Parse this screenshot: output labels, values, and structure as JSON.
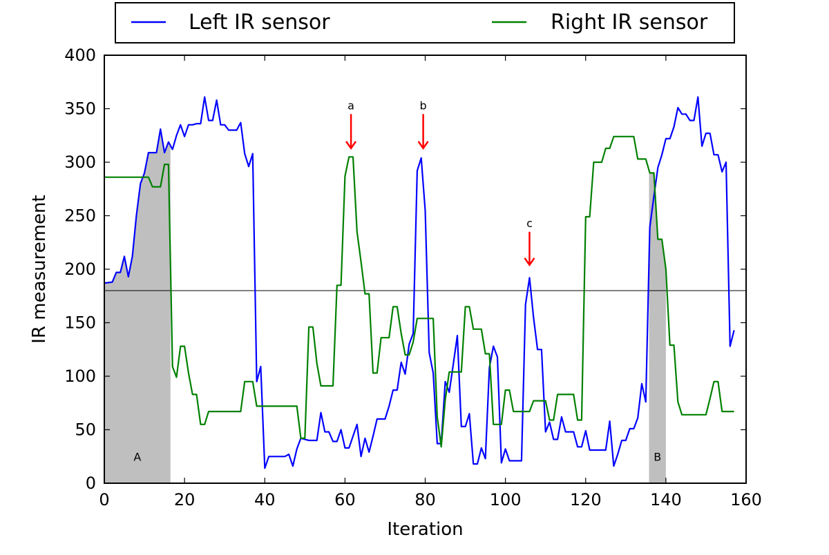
{
  "chart_data": {
    "type": "line",
    "xlabel": "Iteration",
    "ylabel": "IR measurement",
    "xlim": [
      0,
      160
    ],
    "ylim": [
      0,
      400
    ],
    "xticks": [
      0,
      20,
      40,
      60,
      80,
      100,
      120,
      140,
      160
    ],
    "yticks": [
      0,
      50,
      100,
      150,
      200,
      250,
      300,
      350,
      400
    ],
    "grid": false,
    "legend_position": "top, outside plot, two columns",
    "threshold_line": 180,
    "series": [
      {
        "name": "Left IR sensor",
        "color": "#0000ff",
        "points": [
          [
            0,
            187
          ],
          [
            2,
            188
          ],
          [
            3,
            197
          ],
          [
            4,
            197
          ],
          [
            5,
            212
          ],
          [
            6,
            193
          ],
          [
            7,
            212
          ],
          [
            8,
            250
          ],
          [
            9,
            280
          ],
          [
            10,
            290
          ],
          [
            11,
            309
          ],
          [
            13,
            309
          ],
          [
            14,
            331
          ],
          [
            15,
            309
          ],
          [
            16,
            319
          ],
          [
            17,
            312
          ],
          [
            18,
            325
          ],
          [
            19,
            335
          ],
          [
            20,
            324
          ],
          [
            21,
            335
          ],
          [
            22,
            335
          ],
          [
            23,
            336
          ],
          [
            24,
            336
          ],
          [
            25,
            361
          ],
          [
            26,
            339
          ],
          [
            27,
            339
          ],
          [
            28,
            358
          ],
          [
            29,
            335
          ],
          [
            30,
            335
          ],
          [
            31,
            330
          ],
          [
            33,
            330
          ],
          [
            34,
            337
          ],
          [
            35,
            308
          ],
          [
            36,
            296
          ],
          [
            37,
            308
          ],
          [
            38,
            95
          ],
          [
            39,
            109
          ],
          [
            40,
            14
          ],
          [
            41,
            25
          ],
          [
            45,
            25
          ],
          [
            46,
            27
          ],
          [
            47,
            16
          ],
          [
            48,
            32
          ],
          [
            49,
            42
          ],
          [
            50,
            41
          ],
          [
            51,
            40
          ],
          [
            53,
            40
          ],
          [
            54,
            66
          ],
          [
            55,
            48
          ],
          [
            56,
            48
          ],
          [
            57,
            39
          ],
          [
            58,
            39
          ],
          [
            59,
            50
          ],
          [
            60,
            33
          ],
          [
            61,
            33
          ],
          [
            62,
            44
          ],
          [
            63,
            55
          ],
          [
            64,
            25
          ],
          [
            65,
            42
          ],
          [
            66,
            29
          ],
          [
            67,
            44
          ],
          [
            68,
            60
          ],
          [
            70,
            60
          ],
          [
            71,
            72
          ],
          [
            72,
            87
          ],
          [
            73,
            87
          ],
          [
            74,
            113
          ],
          [
            75,
            102
          ],
          [
            76,
            130
          ],
          [
            77,
            140
          ],
          [
            78,
            292
          ],
          [
            79,
            304
          ],
          [
            80,
            255
          ],
          [
            81,
            122
          ],
          [
            82,
            103
          ],
          [
            83,
            37
          ],
          [
            84,
            37
          ],
          [
            85,
            95
          ],
          [
            86,
            85
          ],
          [
            87,
            111
          ],
          [
            88,
            138
          ],
          [
            89,
            53
          ],
          [
            90,
            53
          ],
          [
            91,
            65
          ],
          [
            92,
            18
          ],
          [
            93,
            18
          ],
          [
            94,
            33
          ],
          [
            95,
            23
          ],
          [
            96,
            108
          ],
          [
            97,
            128
          ],
          [
            98,
            118
          ],
          [
            99,
            19
          ],
          [
            100,
            32
          ],
          [
            101,
            21
          ],
          [
            104,
            21
          ],
          [
            105,
            167
          ],
          [
            106,
            192
          ],
          [
            107,
            155
          ],
          [
            108,
            125
          ],
          [
            109,
            125
          ],
          [
            110,
            48
          ],
          [
            111,
            57
          ],
          [
            112,
            41
          ],
          [
            113,
            41
          ],
          [
            114,
            62
          ],
          [
            115,
            48
          ],
          [
            117,
            48
          ],
          [
            118,
            34
          ],
          [
            119,
            34
          ],
          [
            120,
            49
          ],
          [
            121,
            31
          ],
          [
            125,
            31
          ],
          [
            126,
            58
          ],
          [
            127,
            16
          ],
          [
            128,
            27
          ],
          [
            129,
            40
          ],
          [
            130,
            40
          ],
          [
            131,
            51
          ],
          [
            132,
            51
          ],
          [
            133,
            61
          ],
          [
            134,
            93
          ],
          [
            135,
            76
          ],
          [
            136,
            239
          ],
          [
            137,
            268
          ],
          [
            138,
            295
          ],
          [
            139,
            307
          ],
          [
            140,
            322
          ],
          [
            141,
            322
          ],
          [
            142,
            333
          ],
          [
            143,
            351
          ],
          [
            144,
            345
          ],
          [
            145,
            345
          ],
          [
            146,
            339
          ],
          [
            147,
            339
          ],
          [
            148,
            361
          ],
          [
            149,
            315
          ],
          [
            150,
            327
          ],
          [
            151,
            327
          ],
          [
            152,
            307
          ],
          [
            153,
            307
          ],
          [
            154,
            291
          ],
          [
            155,
            300
          ],
          [
            156,
            128
          ],
          [
            157,
            143
          ]
        ]
      },
      {
        "name": "Right IR sensor",
        "color": "#008000",
        "points": [
          [
            0,
            286
          ],
          [
            11,
            286
          ],
          [
            12,
            277
          ],
          [
            14,
            277
          ],
          [
            15,
            298
          ],
          [
            16,
            298
          ],
          [
            17,
            109
          ],
          [
            18,
            99
          ],
          [
            19,
            128
          ],
          [
            20,
            128
          ],
          [
            21,
            103
          ],
          [
            22,
            83
          ],
          [
            23,
            83
          ],
          [
            24,
            55
          ],
          [
            25,
            55
          ],
          [
            26,
            67
          ],
          [
            34,
            67
          ],
          [
            35,
            95
          ],
          [
            37,
            95
          ],
          [
            38,
            72
          ],
          [
            48,
            72
          ],
          [
            49,
            42
          ],
          [
            50,
            42
          ],
          [
            51,
            146
          ],
          [
            52,
            146
          ],
          [
            53,
            112
          ],
          [
            54,
            91
          ],
          [
            57,
            91
          ],
          [
            58,
            185
          ],
          [
            59,
            185
          ],
          [
            60,
            287
          ],
          [
            61,
            305
          ],
          [
            62,
            305
          ],
          [
            63,
            235
          ],
          [
            64,
            207
          ],
          [
            65,
            177
          ],
          [
            66,
            177
          ],
          [
            67,
            103
          ],
          [
            68,
            103
          ],
          [
            69,
            136
          ],
          [
            71,
            136
          ],
          [
            72,
            165
          ],
          [
            73,
            165
          ],
          [
            74,
            140
          ],
          [
            75,
            120
          ],
          [
            76,
            120
          ],
          [
            77,
            132
          ],
          [
            78,
            154
          ],
          [
            82,
            154
          ],
          [
            83,
            62
          ],
          [
            84,
            34
          ],
          [
            85,
            78
          ],
          [
            86,
            104
          ],
          [
            89,
            104
          ],
          [
            90,
            165
          ],
          [
            91,
            165
          ],
          [
            92,
            144
          ],
          [
            94,
            144
          ],
          [
            95,
            121
          ],
          [
            96,
            121
          ],
          [
            97,
            55
          ],
          [
            99,
            55
          ],
          [
            100,
            87
          ],
          [
            101,
            87
          ],
          [
            102,
            67
          ],
          [
            105,
            67
          ],
          [
            106,
            67
          ],
          [
            107,
            77
          ],
          [
            110,
            77
          ],
          [
            111,
            59
          ],
          [
            112,
            59
          ],
          [
            113,
            83
          ],
          [
            117,
            83
          ],
          [
            118,
            59
          ],
          [
            119,
            59
          ],
          [
            120,
            249
          ],
          [
            121,
            249
          ],
          [
            122,
            300
          ],
          [
            124,
            300
          ],
          [
            125,
            313
          ],
          [
            126,
            313
          ],
          [
            127,
            324
          ],
          [
            132,
            324
          ],
          [
            133,
            303
          ],
          [
            135,
            303
          ],
          [
            136,
            290
          ],
          [
            137,
            290
          ],
          [
            138,
            228
          ],
          [
            139,
            228
          ],
          [
            140,
            200
          ],
          [
            141,
            129
          ],
          [
            142,
            129
          ],
          [
            143,
            76
          ],
          [
            144,
            64
          ],
          [
            150,
            64
          ],
          [
            151,
            79
          ],
          [
            152,
            95
          ],
          [
            153,
            95
          ],
          [
            154,
            67
          ],
          [
            157,
            67
          ]
        ]
      }
    ],
    "shaded_regions": [
      {
        "label": "A",
        "series": "Left IR sensor",
        "x_start": 0,
        "x_end": 16.5,
        "fill": "#bfbfbf"
      },
      {
        "label": "B",
        "series": "Right IR sensor",
        "x_start": 135.8,
        "x_end": 140,
        "fill": "#bfbfbf"
      }
    ],
    "annotations": [
      {
        "label": "a",
        "x": 61.5,
        "y_top": 345,
        "y_tip": 313,
        "color": "#ff0000"
      },
      {
        "label": "b",
        "x": 79.5,
        "y_top": 345,
        "y_tip": 313,
        "color": "#ff0000"
      },
      {
        "label": "c",
        "x": 106,
        "y_top": 235,
        "y_tip": 204,
        "color": "#ff0000"
      }
    ]
  }
}
